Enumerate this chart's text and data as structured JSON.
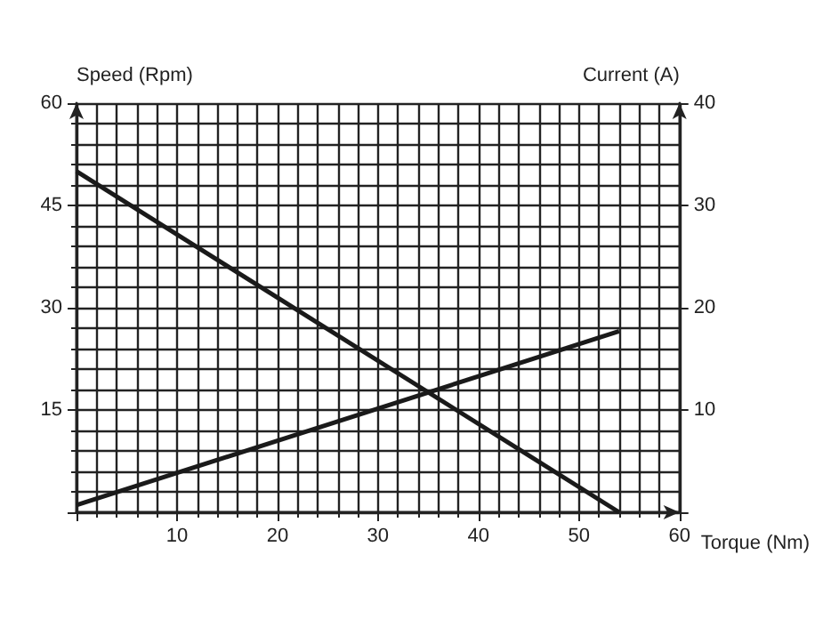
{
  "chart_data": {
    "type": "line",
    "xlabel": "Torque (Nm)",
    "ylabel": "Speed (Rpm)",
    "y2label": "Current (A)",
    "x": [
      0,
      54
    ],
    "series": [
      {
        "color": "#1a1a1a",
        "values": [
          50,
          0
        ]
      },
      {
        "color": "#1a1a1a",
        "values": [
          0.7,
          17.7
        ],
        "axis": "y2"
      }
    ],
    "xlim": [
      0,
      60
    ],
    "xticks": [
      {
        "value": 0,
        "label": null
      },
      10,
      20,
      30,
      40,
      50,
      60
    ],
    "ylim": [
      0,
      60
    ],
    "yticks": [
      {
        "value": 0,
        "label": null
      },
      15,
      30,
      45,
      60
    ],
    "y2lim": [
      0,
      40
    ],
    "y2ticks": [
      {
        "value": 0,
        "label": null
      },
      10,
      20,
      30,
      40
    ],
    "grid": true,
    "marker": "none",
    "line_style": "solid"
  }
}
